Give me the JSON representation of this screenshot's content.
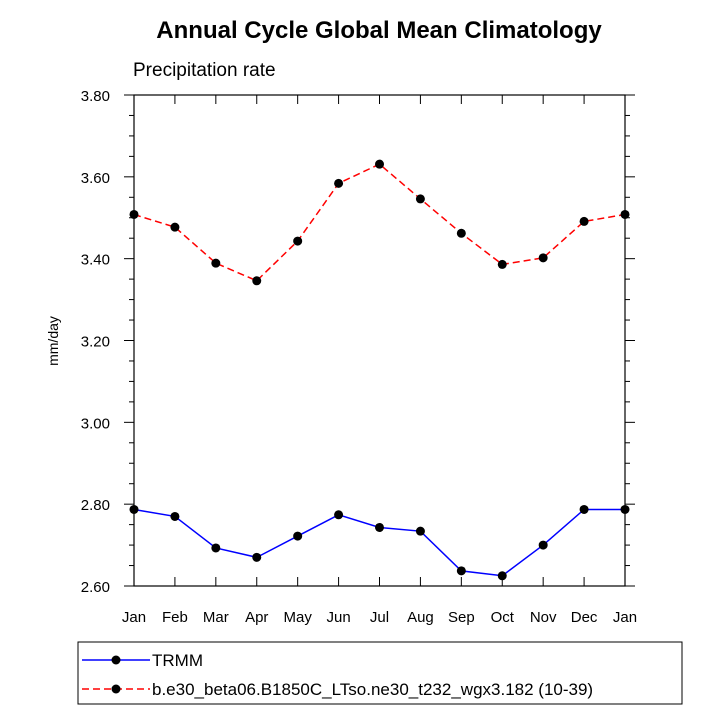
{
  "chart_data": {
    "type": "line",
    "title": "Annual Cycle Global Mean Climatology",
    "subtitle": "Precipitation rate",
    "xlabel": "",
    "ylabel": "mm/day",
    "categories": [
      "Jan",
      "Feb",
      "Mar",
      "Apr",
      "May",
      "Jun",
      "Jul",
      "Aug",
      "Sep",
      "Oct",
      "Nov",
      "Dec",
      "Jan"
    ],
    "ylim": [
      2.6,
      3.8
    ],
    "yticks": [
      "2.60",
      "2.80",
      "3.00",
      "3.20",
      "3.40",
      "3.60",
      "3.80"
    ],
    "series": [
      {
        "name": "TRMM",
        "color": "#0000ff",
        "dash": "solid",
        "marker": "filled-circle",
        "values": [
          2.787,
          2.77,
          2.693,
          2.67,
          2.722,
          2.774,
          2.743,
          2.734,
          2.637,
          2.625,
          2.7,
          2.787,
          2.787
        ]
      },
      {
        "name": "b.e30_beta06.B1850C_LTso.ne30_t232_wgx3.182 (10-39)",
        "color": "#ff0000",
        "dash": "dashed",
        "marker": "filled-circle",
        "values": [
          3.508,
          3.477,
          3.389,
          3.346,
          3.443,
          3.584,
          3.631,
          3.546,
          3.462,
          3.386,
          3.402,
          3.491,
          3.508
        ]
      }
    ],
    "grid": false,
    "legend_position": "bottom"
  }
}
